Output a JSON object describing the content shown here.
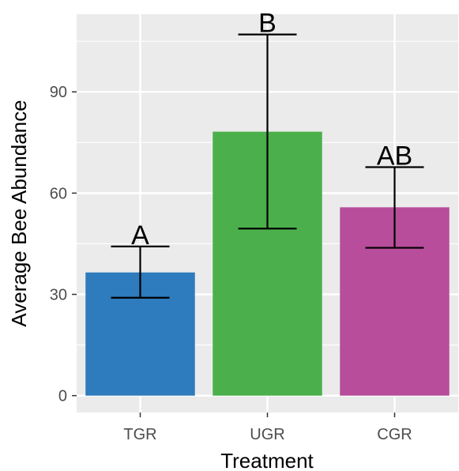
{
  "chart_data": {
    "type": "bar",
    "xlabel": "Treatment",
    "ylabel": "Average Bee Abundance",
    "categories": [
      "TGR",
      "UGR",
      "CGR"
    ],
    "values": [
      36.5,
      78.2,
      55.8
    ],
    "error_bars": {
      "lower": [
        29.0,
        49.5,
        43.8
      ],
      "upper": [
        44.2,
        107.0,
        67.7
      ]
    },
    "significance_labels": [
      "A",
      "B",
      "AB"
    ],
    "bar_colors": [
      "#2e7bbd",
      "#4bb04b",
      "#b74d9b"
    ],
    "y_ticks": [
      0,
      30,
      60,
      90
    ],
    "ylim": [
      -5,
      113
    ],
    "grid": true,
    "panel_background": "#ebebeb",
    "gridline_color": "#ffffff"
  }
}
